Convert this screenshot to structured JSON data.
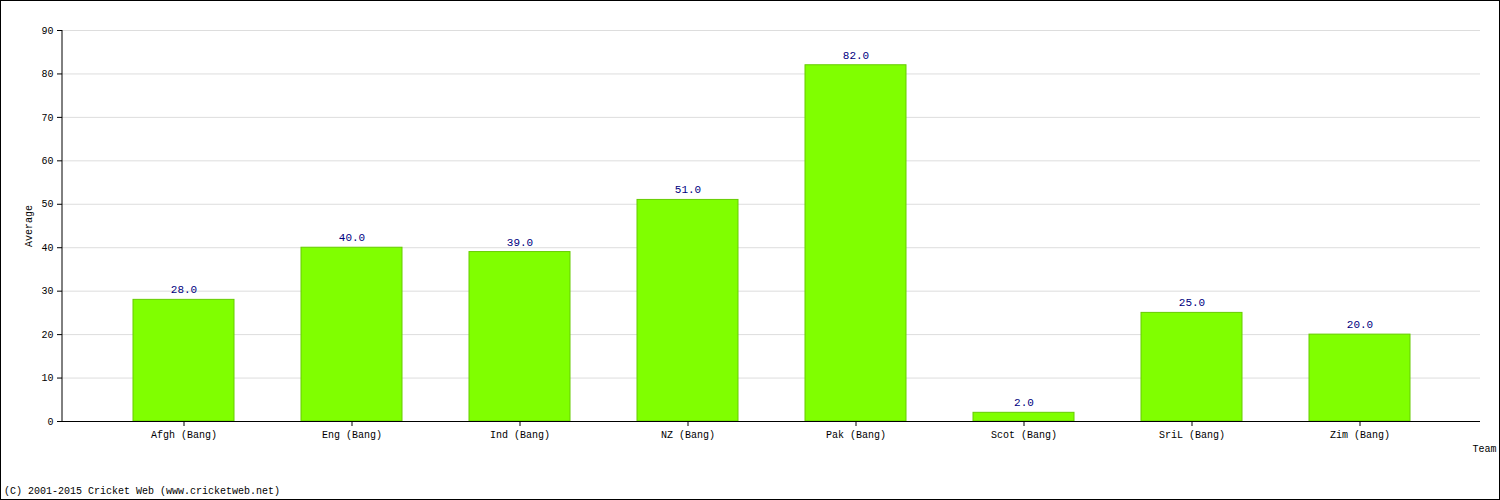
{
  "chart_data": {
    "type": "bar",
    "categories": [
      "Afgh (Bang)",
      "Eng (Bang)",
      "Ind (Bang)",
      "NZ (Bang)",
      "Pak (Bang)",
      "Scot (Bang)",
      "SriL (Bang)",
      "Zim (Bang)"
    ],
    "values": [
      28,
      40,
      39,
      51,
      82,
      2,
      25,
      20
    ],
    "value_labels": [
      "28.0",
      "40.0",
      "39.0",
      "51.0",
      "82.0",
      "2.0",
      "25.0",
      "20.0"
    ],
    "color": "#80ff00",
    "x_label": "Team",
    "y_label": "Average",
    "ylim": [
      0,
      90
    ],
    "yticks": [
      0,
      10,
      20,
      30,
      40,
      50,
      60,
      70,
      80,
      90
    ],
    "grid": true,
    "data_labels": true,
    "caption": "(C) 2001-2015 Cricket Web (www.cricketweb.net)"
  }
}
